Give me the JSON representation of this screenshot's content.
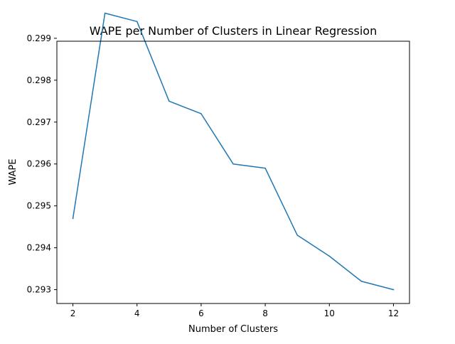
{
  "chart_data": {
    "type": "line",
    "title": "WAPE per Number of Clusters in Linear Regression",
    "xlabel": "Number of Clusters",
    "ylabel": "WAPE",
    "x": [
      2,
      3,
      4,
      5,
      6,
      7,
      8,
      9,
      10,
      11,
      12
    ],
    "series": [
      {
        "values": [
          0.2947,
          0.2996,
          0.2994,
          0.2975,
          0.2972,
          0.296,
          0.2959,
          0.2943,
          0.2938,
          0.2932,
          0.293
        ]
      }
    ],
    "xlim": [
      1.5,
      12.5
    ],
    "ylim": [
      0.29267,
      0.29893
    ],
    "xticks": [
      2,
      4,
      6,
      8,
      10,
      12
    ],
    "xtick_labels": [
      "2",
      "4",
      "6",
      "8",
      "10",
      "12"
    ],
    "yticks": [
      0.293,
      0.294,
      0.295,
      0.296,
      0.297,
      0.298,
      0.299
    ],
    "ytick_labels": [
      "0.293",
      "0.294",
      "0.295",
      "0.296",
      "0.297",
      "0.298",
      "0.299"
    ],
    "grid": false,
    "line_color": "#1f77b4"
  }
}
